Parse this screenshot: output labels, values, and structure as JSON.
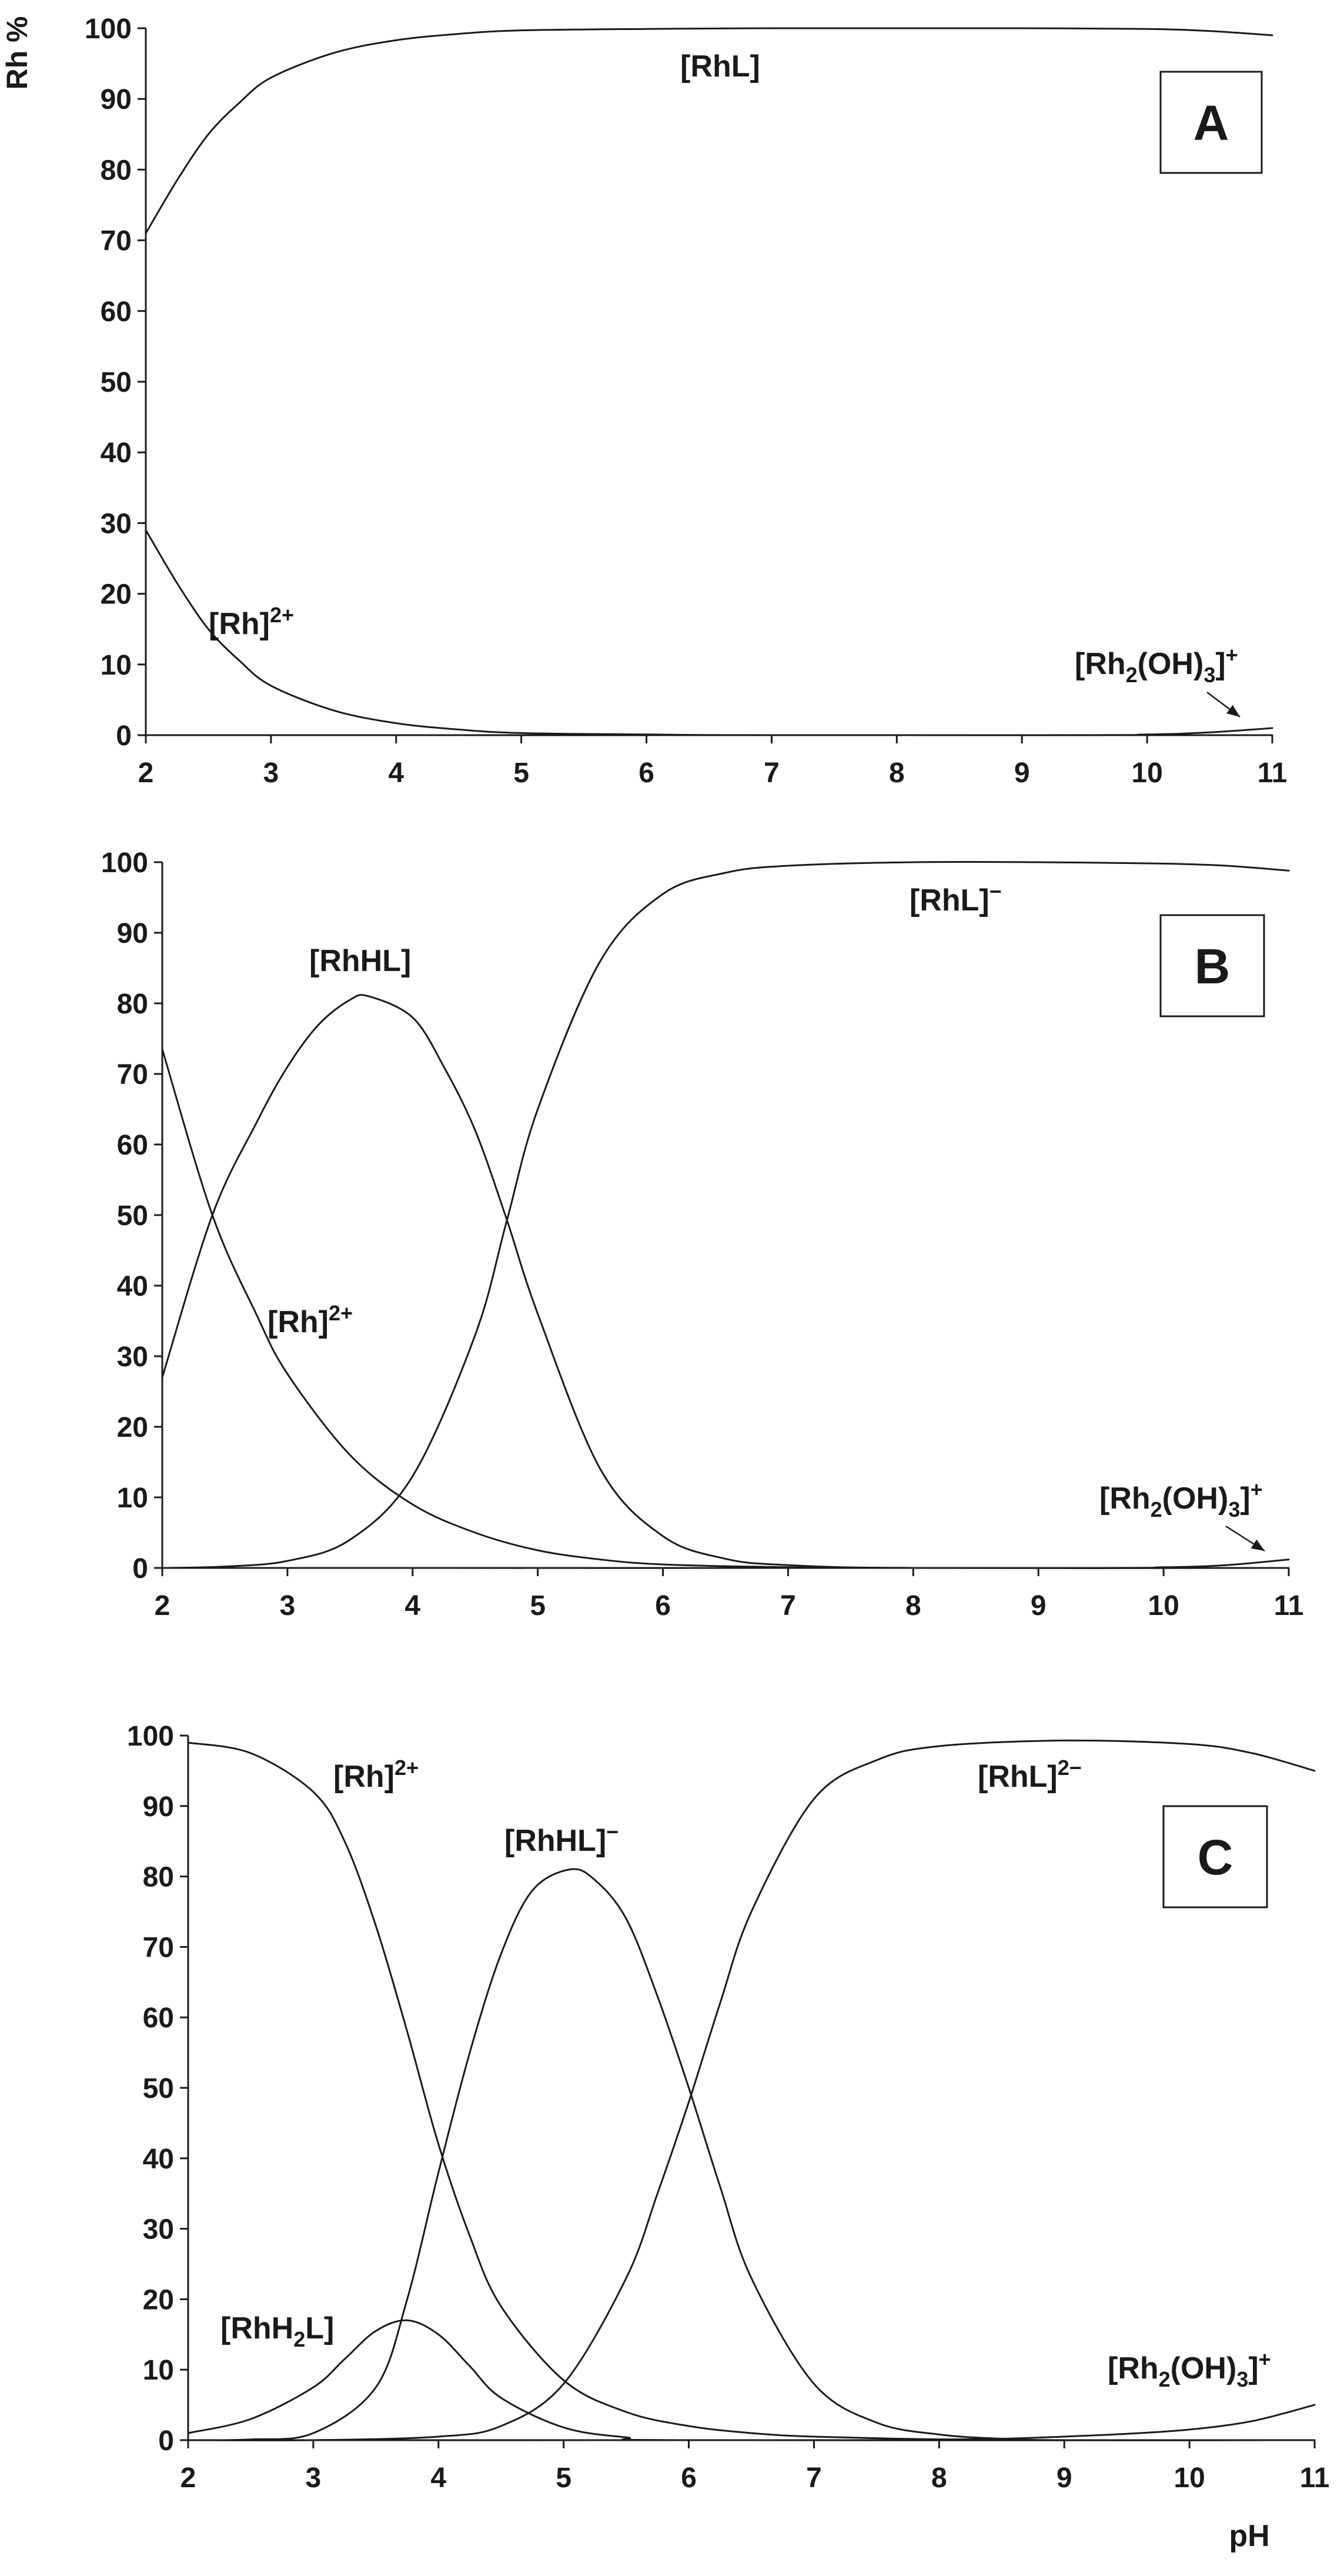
{
  "chart_data": [
    {
      "type": "line",
      "panel_label": "A",
      "ylabel": "Rh %",
      "xlabel": "",
      "xlim": [
        2,
        11
      ],
      "ylim": [
        0,
        100
      ],
      "x_ticks": [
        "2",
        "3",
        "4",
        "5",
        "6",
        "7",
        "8",
        "9",
        "10",
        "11"
      ],
      "y_ticks": [
        "0",
        "10",
        "20",
        "30",
        "40",
        "50",
        "60",
        "70",
        "80",
        "90",
        "100"
      ],
      "grid": false,
      "series": [
        {
          "name": "[RhL]",
          "points": [
            [
              2.0,
              71.0
            ],
            [
              2.25,
              78.5
            ],
            [
              2.5,
              85.0
            ],
            [
              2.75,
              89.5
            ],
            [
              3.0,
              93.0
            ],
            [
              3.5,
              96.5
            ],
            [
              4.0,
              98.3
            ],
            [
              4.5,
              99.2
            ],
            [
              5.0,
              99.7
            ],
            [
              6.0,
              99.9
            ],
            [
              7.0,
              100.0
            ],
            [
              8.0,
              100.0
            ],
            [
              9.0,
              100.0
            ],
            [
              10.0,
              99.9
            ],
            [
              10.5,
              99.6
            ],
            [
              11.0,
              99.0
            ]
          ]
        },
        {
          "name": "[Rh]2+",
          "points": [
            [
              2.0,
              29.0
            ],
            [
              2.25,
              21.5
            ],
            [
              2.5,
              15.0
            ],
            [
              2.75,
              10.5
            ],
            [
              3.0,
              7.0
            ],
            [
              3.5,
              3.5
            ],
            [
              4.0,
              1.7
            ],
            [
              4.5,
              0.8
            ],
            [
              5.0,
              0.3
            ],
            [
              6.0,
              0.1
            ],
            [
              7.0,
              0.0
            ],
            [
              11.0,
              0.0
            ]
          ]
        },
        {
          "name": "[Rh2(OH)3]+",
          "points": [
            [
              2.0,
              0.0
            ],
            [
              9.0,
              0.0
            ],
            [
              10.0,
              0.1
            ],
            [
              10.5,
              0.4
            ],
            [
              11.0,
              1.0
            ]
          ]
        }
      ],
      "labels": [
        {
          "id": "RhL",
          "parts": [
            {
              "t": "[RhL]"
            }
          ]
        },
        {
          "id": "Rh",
          "parts": [
            {
              "t": "[Rh]"
            },
            {
              "t": "2+",
              "sup": true
            }
          ]
        },
        {
          "id": "Rh2OH3",
          "parts": [
            {
              "t": "[Rh"
            },
            {
              "t": "2",
              "sub": true
            },
            {
              "t": "(OH)"
            },
            {
              "t": "3",
              "sub": true
            },
            {
              "t": "]"
            },
            {
              "t": "+",
              "sup": true
            }
          ]
        }
      ]
    },
    {
      "type": "line",
      "panel_label": "B",
      "ylabel": "",
      "xlabel": "",
      "xlim": [
        2,
        11
      ],
      "ylim": [
        0,
        100
      ],
      "x_ticks": [
        "2",
        "3",
        "4",
        "5",
        "6",
        "7",
        "8",
        "9",
        "10",
        "11"
      ],
      "y_ticks": [
        "0",
        "10",
        "20",
        "30",
        "40",
        "50",
        "60",
        "70",
        "80",
        "90",
        "100"
      ],
      "grid": false,
      "series": [
        {
          "name": "[RhL]−",
          "points": [
            [
              2.0,
              0.0
            ],
            [
              2.5,
              0.2
            ],
            [
              3.0,
              1.0
            ],
            [
              3.5,
              4.0
            ],
            [
              4.0,
              13.0
            ],
            [
              4.5,
              33.0
            ],
            [
              4.75,
              49.0
            ],
            [
              5.0,
              65.0
            ],
            [
              5.5,
              86.0
            ],
            [
              6.0,
              95.5
            ],
            [
              6.5,
              98.5
            ],
            [
              7.0,
              99.5
            ],
            [
              8.0,
              100.0
            ],
            [
              9.0,
              100.0
            ],
            [
              10.0,
              99.8
            ],
            [
              10.5,
              99.5
            ],
            [
              11.0,
              98.8
            ]
          ]
        },
        {
          "name": "[RhHL]",
          "points": [
            [
              2.0,
              27.0
            ],
            [
              2.4,
              50.0
            ],
            [
              2.75,
              63.0
            ],
            [
              3.0,
              71.0
            ],
            [
              3.25,
              77.0
            ],
            [
              3.5,
              80.5
            ],
            [
              3.65,
              81.0
            ],
            [
              4.0,
              78.0
            ],
            [
              4.25,
              71.0
            ],
            [
              4.5,
              62.0
            ],
            [
              4.75,
              49.5
            ],
            [
              5.0,
              36.0
            ],
            [
              5.5,
              14.0
            ],
            [
              6.0,
              4.5
            ],
            [
              6.5,
              1.3
            ],
            [
              7.0,
              0.4
            ],
            [
              8.0,
              0.0
            ],
            [
              11.0,
              0.0
            ]
          ]
        },
        {
          "name": "[Rh]2+",
          "points": [
            [
              2.0,
              73.5
            ],
            [
              2.4,
              50.0
            ],
            [
              2.75,
              36.0
            ],
            [
              3.0,
              27.5
            ],
            [
              3.5,
              16.0
            ],
            [
              4.0,
              9.0
            ],
            [
              4.5,
              5.0
            ],
            [
              5.0,
              2.5
            ],
            [
              5.5,
              1.2
            ],
            [
              6.0,
              0.5
            ],
            [
              7.0,
              0.1
            ],
            [
              8.0,
              0.0
            ],
            [
              11.0,
              0.0
            ]
          ]
        },
        {
          "name": "[Rh2(OH)3]+",
          "points": [
            [
              2.0,
              0.0
            ],
            [
              9.0,
              0.0
            ],
            [
              10.0,
              0.1
            ],
            [
              10.5,
              0.4
            ],
            [
              11.0,
              1.2
            ]
          ]
        }
      ],
      "labels": [
        {
          "id": "RhL",
          "parts": [
            {
              "t": "[RhL]"
            },
            {
              "t": "−",
              "sup": true
            }
          ]
        },
        {
          "id": "RhHL",
          "parts": [
            {
              "t": "[RhHL]"
            }
          ]
        },
        {
          "id": "Rh",
          "parts": [
            {
              "t": "[Rh]"
            },
            {
              "t": "2+",
              "sup": true
            }
          ]
        },
        {
          "id": "Rh2OH3",
          "parts": [
            {
              "t": "[Rh"
            },
            {
              "t": "2",
              "sub": true
            },
            {
              "t": "(OH)"
            },
            {
              "t": "3",
              "sub": true
            },
            {
              "t": "]"
            },
            {
              "t": "+",
              "sup": true
            }
          ]
        }
      ]
    },
    {
      "type": "line",
      "panel_label": "C",
      "ylabel": "",
      "xlabel": "pH",
      "xlim": [
        2,
        11
      ],
      "ylim": [
        0,
        100
      ],
      "x_ticks": [
        "2",
        "3",
        "4",
        "5",
        "6",
        "7",
        "8",
        "9",
        "10",
        "11"
      ],
      "y_ticks": [
        "0",
        "10",
        "20",
        "30",
        "40",
        "50",
        "60",
        "70",
        "80",
        "90",
        "100"
      ],
      "grid": false,
      "series": [
        {
          "name": "[Rh]2+",
          "points": [
            [
              2.0,
              99.0
            ],
            [
              2.5,
              97.5
            ],
            [
              3.0,
              92.0
            ],
            [
              3.25,
              85.0
            ],
            [
              3.5,
              73.0
            ],
            [
              3.75,
              58.0
            ],
            [
              4.0,
              42.0
            ],
            [
              4.25,
              29.0
            ],
            [
              4.5,
              19.0
            ],
            [
              5.0,
              8.5
            ],
            [
              5.5,
              4.0
            ],
            [
              6.0,
              2.0
            ],
            [
              6.5,
              1.0
            ],
            [
              7.0,
              0.5
            ],
            [
              8.0,
              0.1
            ],
            [
              9.0,
              0.0
            ],
            [
              11.0,
              0.0
            ]
          ]
        },
        {
          "name": "[RhH2L]",
          "points": [
            [
              2.0,
              1.0
            ],
            [
              2.5,
              3.0
            ],
            [
              3.0,
              7.5
            ],
            [
              3.25,
              11.5
            ],
            [
              3.5,
              15.5
            ],
            [
              3.75,
              17.0
            ],
            [
              4.0,
              15.0
            ],
            [
              4.25,
              10.5
            ],
            [
              4.5,
              6.0
            ],
            [
              5.0,
              1.8
            ],
            [
              5.5,
              0.4
            ],
            [
              6.0,
              0.0
            ],
            [
              11.0,
              0.0
            ]
          ]
        },
        {
          "name": "[RhHL]−",
          "points": [
            [
              2.0,
              0.0
            ],
            [
              2.5,
              0.1
            ],
            [
              3.0,
              1.0
            ],
            [
              3.5,
              7.5
            ],
            [
              3.75,
              20.0
            ],
            [
              4.0,
              38.0
            ],
            [
              4.25,
              55.0
            ],
            [
              4.5,
              69.0
            ],
            [
              4.75,
              78.0
            ],
            [
              5.05,
              81.0
            ],
            [
              5.25,
              79.5
            ],
            [
              5.5,
              74.0
            ],
            [
              5.75,
              63.0
            ],
            [
              6.0,
              50.0
            ],
            [
              6.25,
              36.0
            ],
            [
              6.5,
              23.0
            ],
            [
              7.0,
              8.0
            ],
            [
              7.5,
              2.5
            ],
            [
              8.0,
              0.8
            ],
            [
              8.5,
              0.2
            ],
            [
              9.0,
              0.0
            ],
            [
              11.0,
              0.0
            ]
          ]
        },
        {
          "name": "[RhL]2−",
          "points": [
            [
              2.0,
              0.0
            ],
            [
              3.0,
              0.0
            ],
            [
              4.0,
              0.5
            ],
            [
              4.5,
              2.0
            ],
            [
              5.0,
              8.0
            ],
            [
              5.5,
              23.0
            ],
            [
              5.75,
              35.0
            ],
            [
              6.0,
              48.0
            ],
            [
              6.25,
              62.0
            ],
            [
              6.5,
              75.0
            ],
            [
              7.0,
              91.0
            ],
            [
              7.5,
              96.5
            ],
            [
              8.0,
              98.5
            ],
            [
              9.0,
              99.3
            ],
            [
              10.0,
              98.8
            ],
            [
              10.5,
              97.5
            ],
            [
              11.0,
              95.0
            ]
          ]
        },
        {
          "name": "[Rh2(OH)3]+",
          "points": [
            [
              2.0,
              0.0
            ],
            [
              7.0,
              0.0
            ],
            [
              8.0,
              0.1
            ],
            [
              8.5,
              0.2
            ],
            [
              9.0,
              0.5
            ],
            [
              9.5,
              0.9
            ],
            [
              10.0,
              1.5
            ],
            [
              10.5,
              2.7
            ],
            [
              11.0,
              5.0
            ]
          ]
        }
      ],
      "labels": [
        {
          "id": "Rh",
          "parts": [
            {
              "t": "[Rh]"
            },
            {
              "t": "2+",
              "sup": true
            }
          ]
        },
        {
          "id": "RhHL",
          "parts": [
            {
              "t": "[RhHL]"
            },
            {
              "t": "−",
              "sup": true
            }
          ]
        },
        {
          "id": "RhL",
          "parts": [
            {
              "t": "[RhL]"
            },
            {
              "t": "2−",
              "sup": true
            }
          ]
        },
        {
          "id": "RhH2L",
          "parts": [
            {
              "t": "[RhH"
            },
            {
              "t": "2",
              "sub": true
            },
            {
              "t": "L]"
            }
          ]
        },
        {
          "id": "Rh2OH3",
          "parts": [
            {
              "t": "[Rh"
            },
            {
              "t": "2",
              "sub": true
            },
            {
              "t": "(OH)"
            },
            {
              "t": "3",
              "sub": true
            },
            {
              "t": "]"
            },
            {
              "t": "+",
              "sup": true
            }
          ]
        }
      ]
    }
  ],
  "colors": {
    "line": "#1a1a1a",
    "axis": "#1a1a1a",
    "background": "#ffffff"
  }
}
